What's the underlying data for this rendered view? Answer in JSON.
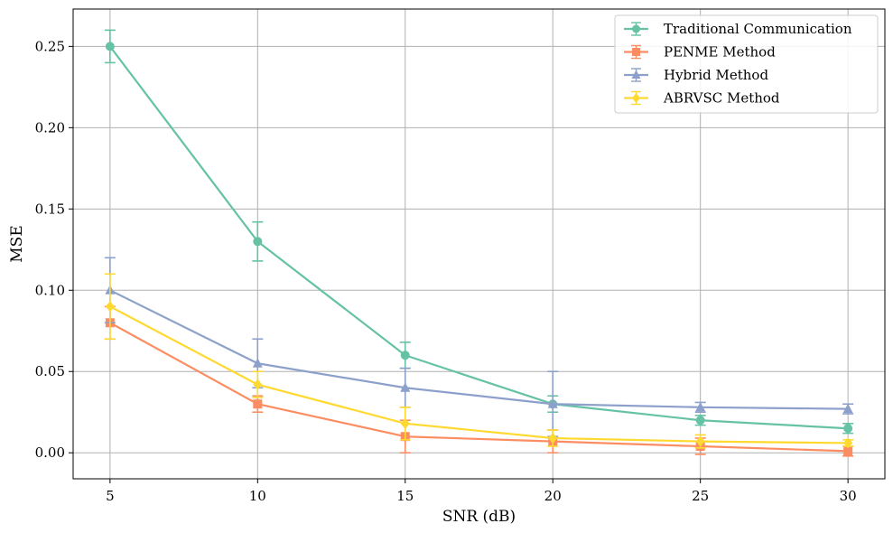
{
  "chart_data": {
    "type": "line",
    "title": "",
    "xlabel": "SNR (dB)",
    "ylabel": "MSE",
    "x": [
      5,
      10,
      15,
      20,
      25,
      30
    ],
    "xticks": [
      5,
      10,
      15,
      20,
      25,
      30
    ],
    "yticks": [
      0.0,
      0.05,
      0.1,
      0.15,
      0.2,
      0.25
    ],
    "ytick_labels": [
      "0.00",
      "0.05",
      "0.10",
      "0.15",
      "0.20",
      "0.25"
    ],
    "xlim": [
      3.75,
      31.25
    ],
    "ylim": [
      -0.016,
      0.273
    ],
    "grid": true,
    "legend_position": "top-right",
    "series": [
      {
        "name": "Traditional Communication",
        "color": "#66c2a5",
        "marker": "circle",
        "values": [
          0.25,
          0.13,
          0.06,
          0.03,
          0.02,
          0.015
        ],
        "errors": [
          0.01,
          0.012,
          0.008,
          0.005,
          0.003,
          0.003
        ]
      },
      {
        "name": "PENME Method",
        "color": "#fc8d62",
        "marker": "square",
        "values": [
          0.08,
          0.03,
          0.01,
          0.007,
          0.004,
          0.001
        ],
        "errors": [
          0.01,
          0.005,
          0.01,
          0.007,
          0.005,
          0.003
        ]
      },
      {
        "name": "Hybrid Method",
        "color": "#8da0cb",
        "marker": "triangle",
        "values": [
          0.1,
          0.055,
          0.04,
          0.03,
          0.028,
          0.027
        ],
        "errors": [
          0.02,
          0.015,
          0.012,
          0.02,
          0.003,
          0.003
        ]
      },
      {
        "name": "ABRVSC Method",
        "color": "#ffd92f",
        "marker": "diamond",
        "values": [
          0.09,
          0.042,
          0.018,
          0.009,
          0.007,
          0.006
        ],
        "errors": [
          0.02,
          0.008,
          0.01,
          0.005,
          0.004,
          0.002
        ]
      }
    ]
  }
}
